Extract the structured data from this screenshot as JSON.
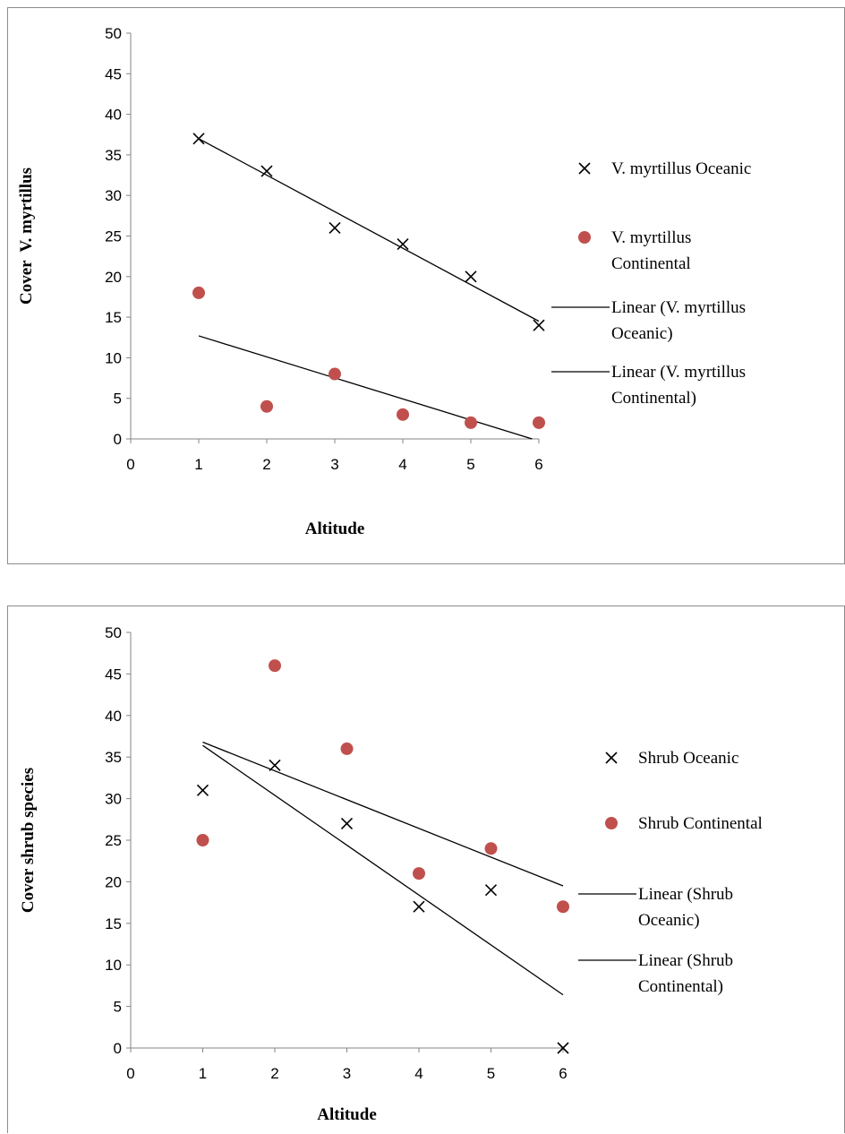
{
  "chart_data": [
    {
      "type": "scatter",
      "xlabel": "Altitude",
      "ylabel": "Cover  V. myrtillus",
      "xlim": [
        0,
        6
      ],
      "ylim": [
        0,
        50
      ],
      "xticks": [
        "0",
        "1",
        "2",
        "3",
        "4",
        "5",
        "6"
      ],
      "yticks": [
        "0",
        "5",
        "10",
        "15",
        "20",
        "25",
        "30",
        "35",
        "40",
        "45",
        "50"
      ],
      "grid": false,
      "legend_position": "right",
      "series": [
        {
          "name": "V. myrtillus Oceanic",
          "marker": "x",
          "color": "#000000",
          "x": [
            1,
            2,
            3,
            4,
            5,
            6
          ],
          "y": [
            37,
            33,
            26,
            24,
            20,
            14
          ]
        },
        {
          "name": "V. myrtillus Continental",
          "marker": "circle",
          "color": "#c0504d",
          "x": [
            1,
            2,
            3,
            4,
            5,
            6
          ],
          "y": [
            18,
            4,
            8,
            3,
            2,
            2
          ]
        }
      ],
      "trendlines": [
        {
          "name": "Linear (V. myrtillus Oceanic)",
          "color": "#000000",
          "x": [
            1,
            6
          ],
          "y": [
            37,
            14.5
          ]
        },
        {
          "name": "Linear (V. myrtillus Continental)",
          "color": "#000000",
          "x": [
            1,
            5.9
          ],
          "y": [
            12.7,
            0
          ]
        }
      ],
      "legend": [
        {
          "kind": "x",
          "lines": [
            "V. myrtillus Oceanic"
          ]
        },
        {
          "kind": "circle",
          "lines": [
            "V. myrtillus",
            "Continental"
          ]
        },
        {
          "kind": "line",
          "lines": [
            "Linear (V. myrtillus",
            "Oceanic)"
          ]
        },
        {
          "kind": "line",
          "lines": [
            "Linear (V. myrtillus",
            "Continental)"
          ]
        }
      ]
    },
    {
      "type": "scatter",
      "xlabel": "Altitude",
      "ylabel": "Cover shrub species",
      "xlim": [
        0,
        6
      ],
      "ylim": [
        0,
        50
      ],
      "xticks": [
        "0",
        "1",
        "2",
        "3",
        "4",
        "5",
        "6"
      ],
      "yticks": [
        "0",
        "5",
        "10",
        "15",
        "20",
        "25",
        "30",
        "35",
        "40",
        "45",
        "50"
      ],
      "grid": false,
      "legend_position": "right",
      "series": [
        {
          "name": "Shrub Oceanic",
          "marker": "x",
          "color": "#000000",
          "x": [
            1,
            2,
            3,
            4,
            5,
            6
          ],
          "y": [
            31,
            34,
            27,
            17,
            19,
            0
          ]
        },
        {
          "name": "Shrub Continental",
          "marker": "circle",
          "color": "#c0504d",
          "x": [
            1,
            2,
            3,
            4,
            5,
            6
          ],
          "y": [
            25,
            46,
            36,
            21,
            24,
            17
          ]
        }
      ],
      "trendlines": [
        {
          "name": "Linear (Shrub Oceanic)",
          "color": "#000000",
          "x": [
            1,
            6
          ],
          "y": [
            36.4,
            6.4
          ]
        },
        {
          "name": "Linear (Shrub Continental)",
          "color": "#000000",
          "x": [
            1,
            6
          ],
          "y": [
            36.8,
            19.5
          ]
        }
      ],
      "legend": [
        {
          "kind": "x",
          "lines": [
            "Shrub Oceanic"
          ]
        },
        {
          "kind": "circle",
          "lines": [
            "Shrub Continental"
          ]
        },
        {
          "kind": "line",
          "lines": [
            "Linear (Shrub",
            "Oceanic)"
          ]
        },
        {
          "kind": "line",
          "lines": [
            "Linear (Shrub",
            "Continental)"
          ]
        }
      ]
    }
  ]
}
